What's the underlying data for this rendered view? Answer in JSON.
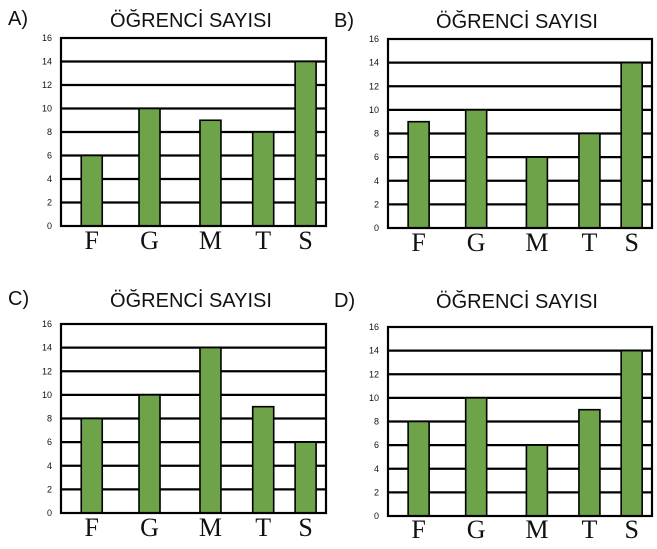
{
  "bar_color": "#6ea34a",
  "chart_data": [
    {
      "type": "bar",
      "option": "A)",
      "title": "ÖĞRENCİ SAYISI",
      "categories": [
        "F",
        "G",
        "M",
        "T",
        "S"
      ],
      "values": [
        6,
        10,
        9,
        8,
        14
      ],
      "ylim": [
        0,
        16
      ],
      "yticks": [
        "0",
        "2",
        "4",
        "6",
        "8",
        "10",
        "12",
        "14",
        "16"
      ],
      "grid": true
    },
    {
      "type": "bar",
      "option": "B)",
      "title": "ÖĞRENCİ SAYISI",
      "categories": [
        "F",
        "G",
        "M",
        "T",
        "S"
      ],
      "values": [
        9,
        10,
        6,
        8,
        14
      ],
      "ylim": [
        0,
        16
      ],
      "yticks": [
        "0",
        "2",
        "4",
        "6",
        "8",
        "10",
        "12",
        "14",
        "16"
      ],
      "grid": true
    },
    {
      "type": "bar",
      "option": "C)",
      "title": "ÖĞRENCİ SAYISI",
      "categories": [
        "F",
        "G",
        "M",
        "T",
        "S"
      ],
      "values": [
        8,
        10,
        14,
        9,
        6
      ],
      "ylim": [
        0,
        16
      ],
      "yticks": [
        "0",
        "2",
        "4",
        "6",
        "8",
        "10",
        "12",
        "14",
        "16"
      ],
      "grid": true
    },
    {
      "type": "bar",
      "option": "D)",
      "title": "ÖĞRENCİ SAYISI",
      "categories": [
        "F",
        "G",
        "M",
        "T",
        "S"
      ],
      "values": [
        8,
        10,
        6,
        9,
        14
      ],
      "ylim": [
        0,
        16
      ],
      "yticks": [
        "0",
        "2",
        "4",
        "6",
        "8",
        "10",
        "12",
        "14",
        "16"
      ],
      "grid": true
    }
  ]
}
